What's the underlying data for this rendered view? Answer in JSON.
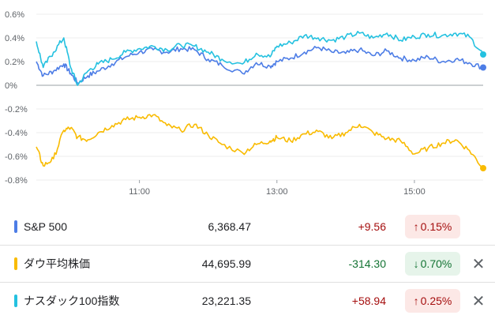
{
  "chart_data": {
    "type": "line",
    "y_ticks": [
      "0.6%",
      "0.4%",
      "0.2%",
      "0%",
      "-0.2%",
      "-0.4%",
      "-0.6%",
      "-0.8%"
    ],
    "y_tick_values": [
      0.6,
      0.4,
      0.2,
      0,
      -0.2,
      -0.4,
      -0.6,
      -0.8
    ],
    "ylim": [
      -0.8,
      0.6
    ],
    "x_ticks": [
      "11:00",
      "13:00",
      "15:00"
    ],
    "x_tick_hours": [
      11,
      13,
      15
    ],
    "xlim": [
      9.5,
      16.0
    ],
    "series": [
      {
        "color": "#4d7de6",
        "x": [
          9.5,
          9.6,
          9.75,
          9.9,
          10.0,
          10.1,
          10.25,
          10.4,
          10.6,
          10.8,
          11.0,
          11.2,
          11.4,
          11.6,
          11.8,
          12.0,
          12.2,
          12.5,
          12.7,
          12.9,
          13.0,
          13.2,
          13.4,
          13.6,
          13.8,
          14.0,
          14.2,
          14.4,
          14.6,
          14.8,
          15.0,
          15.2,
          15.4,
          15.6,
          15.8,
          16.0
        ],
        "values": [
          0.2,
          0.08,
          0.12,
          0.18,
          0.1,
          0.02,
          0.08,
          0.12,
          0.18,
          0.24,
          0.28,
          0.3,
          0.28,
          0.31,
          0.3,
          0.22,
          0.17,
          0.1,
          0.19,
          0.16,
          0.2,
          0.23,
          0.28,
          0.32,
          0.28,
          0.27,
          0.3,
          0.25,
          0.29,
          0.23,
          0.21,
          0.24,
          0.2,
          0.22,
          0.19,
          0.15
        ]
      },
      {
        "color": "#24c1e0",
        "x": [
          9.5,
          9.6,
          9.75,
          9.9,
          10.0,
          10.1,
          10.25,
          10.4,
          10.6,
          10.8,
          11.0,
          11.2,
          11.4,
          11.6,
          11.8,
          12.0,
          12.2,
          12.5,
          12.7,
          12.9,
          13.0,
          13.2,
          13.4,
          13.6,
          13.8,
          14.0,
          14.2,
          14.4,
          14.6,
          14.8,
          15.0,
          15.2,
          15.4,
          15.6,
          15.8,
          16.0
        ],
        "values": [
          0.37,
          0.15,
          0.28,
          0.4,
          0.15,
          0.0,
          0.12,
          0.18,
          0.22,
          0.28,
          0.31,
          0.33,
          0.3,
          0.34,
          0.33,
          0.28,
          0.22,
          0.18,
          0.27,
          0.24,
          0.33,
          0.36,
          0.42,
          0.4,
          0.38,
          0.41,
          0.44,
          0.4,
          0.44,
          0.38,
          0.41,
          0.43,
          0.42,
          0.44,
          0.41,
          0.26
        ]
      },
      {
        "color": "#f9bb00",
        "x": [
          9.5,
          9.6,
          9.75,
          9.9,
          10.0,
          10.1,
          10.25,
          10.4,
          10.6,
          10.8,
          11.0,
          11.2,
          11.4,
          11.6,
          11.8,
          12.0,
          12.2,
          12.5,
          12.7,
          12.9,
          13.0,
          13.2,
          13.4,
          13.6,
          13.8,
          14.0,
          14.2,
          14.4,
          14.6,
          14.8,
          15.0,
          15.2,
          15.4,
          15.6,
          15.8,
          16.0
        ],
        "values": [
          -0.52,
          -0.68,
          -0.62,
          -0.38,
          -0.36,
          -0.44,
          -0.46,
          -0.4,
          -0.34,
          -0.29,
          -0.27,
          -0.25,
          -0.34,
          -0.38,
          -0.33,
          -0.42,
          -0.5,
          -0.57,
          -0.5,
          -0.47,
          -0.44,
          -0.47,
          -0.41,
          -0.39,
          -0.45,
          -0.4,
          -0.33,
          -0.4,
          -0.45,
          -0.47,
          -0.58,
          -0.53,
          -0.49,
          -0.46,
          -0.55,
          -0.7
        ]
      }
    ]
  },
  "indices": [
    {
      "name": "S&P 500",
      "price": "6,368.47",
      "change": "+9.56",
      "pct": "0.15%",
      "arrow": "↑",
      "color": "#4d7de6",
      "closable": false
    },
    {
      "name": "ダウ平均株価",
      "price": "44,695.99",
      "change": "-314.30",
      "pct": "0.70%",
      "arrow": "↓",
      "color": "#f9bb00",
      "closable": true
    },
    {
      "name": "ナスダック100指数",
      "price": "23,221.35",
      "change": "+58.94",
      "pct": "0.25%",
      "arrow": "↑",
      "color": "#24c1e0",
      "closable": true
    }
  ],
  "close_glyph": "✕"
}
